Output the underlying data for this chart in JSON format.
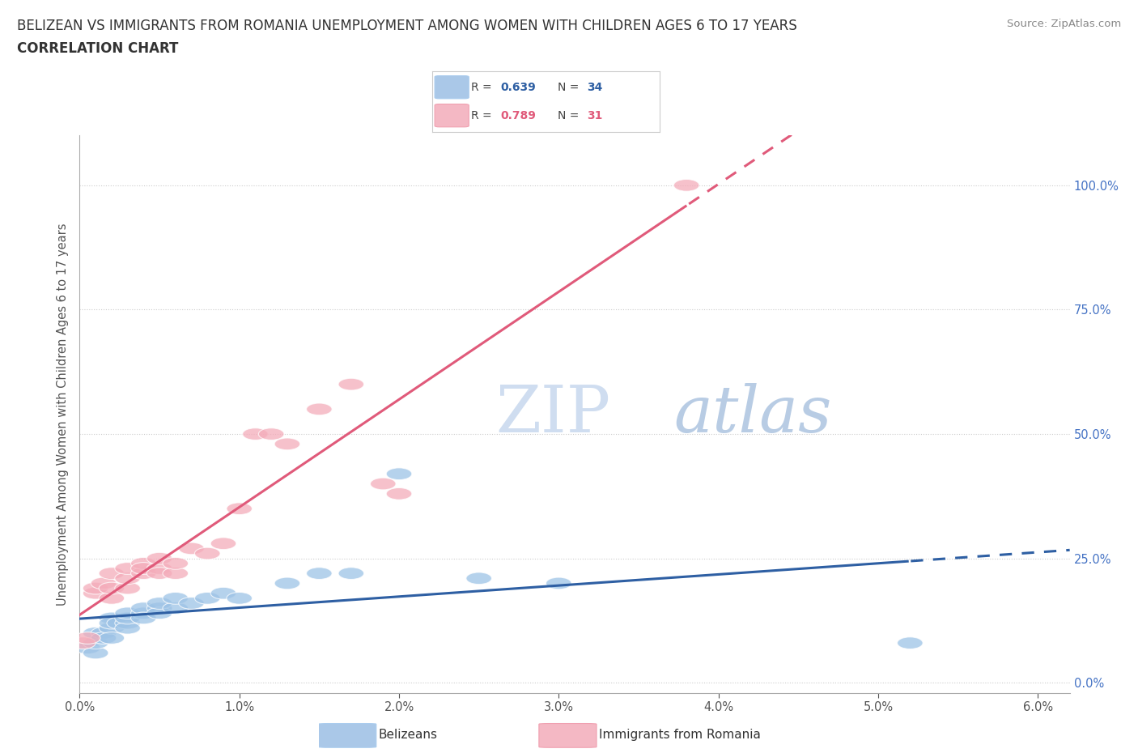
{
  "title_line1": "BELIZEAN VS IMMIGRANTS FROM ROMANIA UNEMPLOYMENT AMONG WOMEN WITH CHILDREN AGES 6 TO 17 YEARS",
  "title_line2": "CORRELATION CHART",
  "source_text": "Source: ZipAtlas.com",
  "xlabel_ticks": [
    "0.0%",
    "1.0%",
    "2.0%",
    "3.0%",
    "4.0%",
    "5.0%",
    "6.0%"
  ],
  "ylabel_ticks": [
    "0.0%",
    "25.0%",
    "50.0%",
    "75.0%",
    "100.0%"
  ],
  "xlim": [
    0.0,
    0.062
  ],
  "ylim": [
    -0.02,
    1.1
  ],
  "ylabel": "Unemployment Among Women with Children Ages 6 to 17 years",
  "belizean_R": 0.639,
  "belizean_N": 34,
  "romania_R": 0.789,
  "romania_N": 31,
  "belizean_color": "#9dc3e6",
  "romania_color": "#f4acba",
  "belizean_line_color": "#2e5fa3",
  "romania_line_color": "#e05a7a",
  "watermark_text": "ZIPatlas",
  "watermark_color": "#d6e4f5",
  "legend_color_belizean": "#aac8e8",
  "legend_color_romania": "#f4b8c4",
  "belizean_x": [
    0.0005,
    0.001,
    0.001,
    0.001,
    0.0015,
    0.0015,
    0.002,
    0.002,
    0.002,
    0.002,
    0.0025,
    0.003,
    0.003,
    0.003,
    0.003,
    0.004,
    0.004,
    0.004,
    0.005,
    0.005,
    0.005,
    0.006,
    0.006,
    0.007,
    0.008,
    0.009,
    0.01,
    0.013,
    0.015,
    0.017,
    0.02,
    0.025,
    0.052,
    0.03
  ],
  "belizean_y": [
    0.07,
    0.06,
    0.08,
    0.1,
    0.1,
    0.09,
    0.11,
    0.13,
    0.09,
    0.12,
    0.12,
    0.12,
    0.11,
    0.13,
    0.14,
    0.14,
    0.15,
    0.13,
    0.15,
    0.14,
    0.16,
    0.15,
    0.17,
    0.16,
    0.17,
    0.18,
    0.17,
    0.2,
    0.22,
    0.22,
    0.42,
    0.21,
    0.08,
    0.2
  ],
  "romania_x": [
    0.0002,
    0.0005,
    0.001,
    0.001,
    0.0015,
    0.002,
    0.002,
    0.002,
    0.003,
    0.003,
    0.003,
    0.004,
    0.004,
    0.004,
    0.005,
    0.005,
    0.005,
    0.006,
    0.006,
    0.007,
    0.008,
    0.009,
    0.01,
    0.011,
    0.012,
    0.013,
    0.015,
    0.017,
    0.019,
    0.038,
    0.02
  ],
  "romania_y": [
    0.08,
    0.09,
    0.18,
    0.19,
    0.2,
    0.17,
    0.19,
    0.22,
    0.19,
    0.21,
    0.23,
    0.22,
    0.24,
    0.23,
    0.23,
    0.22,
    0.25,
    0.22,
    0.24,
    0.27,
    0.26,
    0.28,
    0.35,
    0.5,
    0.5,
    0.48,
    0.55,
    0.6,
    0.4,
    1.0,
    0.38
  ]
}
